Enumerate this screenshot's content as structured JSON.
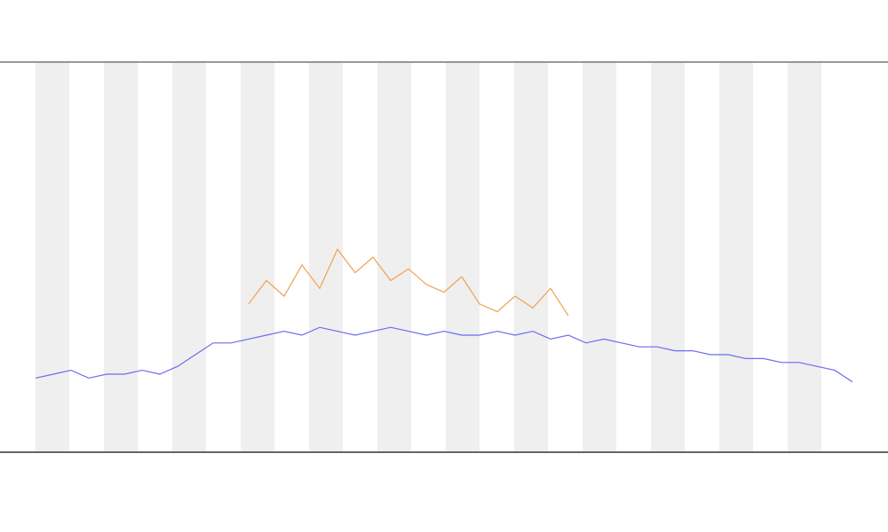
{
  "chart_data": {
    "type": "line",
    "x": [
      0,
      1,
      2,
      3,
      4,
      5,
      6,
      7,
      8,
      9,
      10,
      11,
      12,
      13,
      14,
      15,
      16,
      17,
      18,
      19,
      20,
      21,
      22,
      23,
      24,
      25,
      26,
      27,
      28,
      29,
      30,
      31,
      32,
      33,
      34,
      35,
      36,
      37,
      38,
      39,
      40,
      41,
      42,
      43,
      44,
      45,
      46
    ],
    "xlim": [
      0,
      46
    ],
    "ylim": [
      0,
      100
    ],
    "series": [
      {
        "color": "#6b6bf0",
        "values": [
          19,
          20,
          21,
          19,
          20,
          20,
          21,
          20,
          22,
          25,
          28,
          28,
          29,
          30,
          31,
          30,
          32,
          31,
          30,
          31,
          32,
          31,
          30,
          31,
          30,
          30,
          31,
          30,
          31,
          29,
          30,
          28,
          29,
          28,
          27,
          27,
          26,
          26,
          25,
          25,
          24,
          24,
          23,
          23,
          22,
          21,
          18
        ]
      },
      {
        "color": "#f0a050",
        "values": [
          null,
          null,
          null,
          null,
          null,
          null,
          null,
          null,
          null,
          null,
          null,
          null,
          38,
          44,
          40,
          48,
          42,
          52,
          46,
          50,
          44,
          47,
          43,
          41,
          45,
          38,
          36,
          40,
          37,
          42,
          35,
          null,
          null,
          null,
          null,
          null,
          null,
          null,
          null,
          null,
          null,
          null,
          null,
          null,
          null,
          null,
          null
        ]
      }
    ]
  }
}
